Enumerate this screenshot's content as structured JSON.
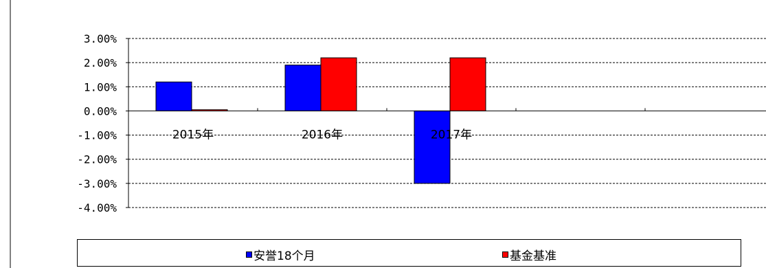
{
  "chart_data": {
    "type": "bar",
    "categories": [
      "2015年",
      "2016年",
      "2017年",
      "",
      ""
    ],
    "series": [
      {
        "name": "安誉18个月",
        "color": "#0000ff",
        "values": [
          1.2,
          1.9,
          -3.0,
          null,
          null
        ]
      },
      {
        "name": "基金基准",
        "color": "#ff0000",
        "values": [
          0.05,
          2.2,
          2.2,
          null,
          null
        ]
      }
    ],
    "yticks": [
      "3.00%",
      "2.00%",
      "1.00%",
      "0.00%",
      "-1.00%",
      "-2.00%",
      "-3.00%",
      "-4.00%"
    ],
    "ytick_values": [
      3,
      2,
      1,
      0,
      -1,
      -2,
      -3,
      -4
    ],
    "ylim": [
      -4,
      3
    ],
    "grid": true,
    "legend_position": "bottom"
  }
}
